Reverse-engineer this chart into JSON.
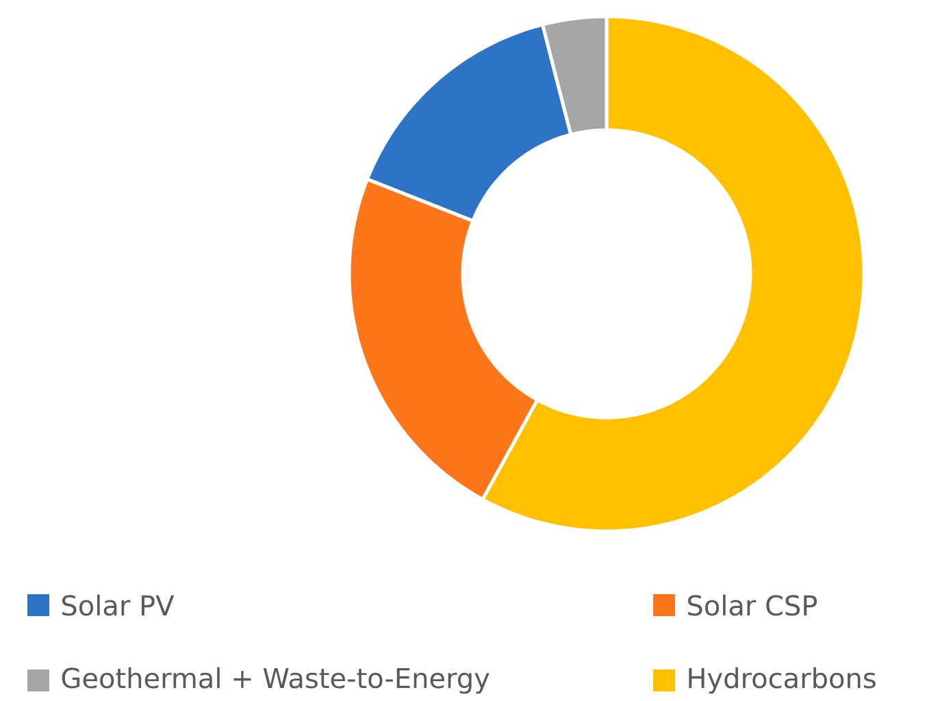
{
  "chart_data": {
    "type": "donut",
    "categories": [
      "Hydrocarbons",
      "Solar CSP",
      "Solar PV",
      "Geothermal + Waste-to-Energy"
    ],
    "values": [
      58,
      23,
      15,
      4
    ],
    "colors": [
      "#ffc000",
      "#ff7519",
      "#2e74c6",
      "#a5a5a5"
    ],
    "legend": "bottom"
  }
}
